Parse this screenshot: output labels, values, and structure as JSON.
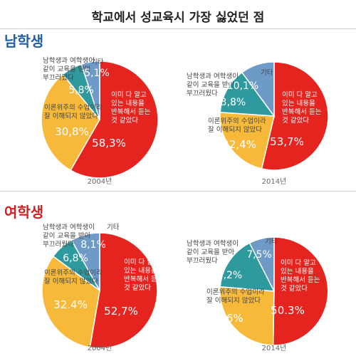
{
  "title": "학교에서 성교육시 가장 싫었던 점",
  "sections": [
    {
      "label": "남학생",
      "color": "#1f5fa8"
    },
    {
      "label": "여학생",
      "color": "#d11f1f"
    }
  ],
  "colors": {
    "red": "#e52420",
    "yellow": "#f6b93a",
    "teal": "#2e9a9d",
    "blue": "#6d9ac7"
  },
  "chart_data": [
    {
      "type": "pie",
      "group": "남학생",
      "year_label": "2004년",
      "slices": [
        {
          "label_lines": [
            "이미 다 알고",
            "있는 내용을",
            "반복해서 듣는",
            "것 같았다"
          ],
          "value": 58.3,
          "value_label": "58,3%",
          "color": "#e52420"
        },
        {
          "label_lines": [
            "이론위주의 수업이라",
            "잘 이해되지 않았다"
          ],
          "value": 30.8,
          "value_label": "30,8%",
          "color": "#f6b93a"
        },
        {
          "label_lines": [
            "남학생과 여학생이",
            "같이 교육을 받아",
            "부끄러웠다"
          ],
          "value": 5.8,
          "value_label": "5,8%",
          "color": "#2e9a9d"
        },
        {
          "label_lines": [
            "기타"
          ],
          "value": 5.1,
          "value_label": "5,1%",
          "color": "#6d9ac7"
        }
      ]
    },
    {
      "type": "pie",
      "group": "남학생",
      "year_label": "2014년",
      "slices": [
        {
          "label_lines": [
            "이미 다 알고",
            "있는 내용을",
            "반복해서 듣는",
            "것 같았다"
          ],
          "value": 53.7,
          "value_label": "53,7%",
          "color": "#e52420"
        },
        {
          "label_lines": [
            "이론위주의 수업이라",
            "잘 이해되지 않았다"
          ],
          "value": 22.4,
          "value_label": "22,4%",
          "color": "#f6b93a"
        },
        {
          "label_lines": [
            "남학생과 여학생이",
            "같이 교육을 받아",
            "부끄러웠다"
          ],
          "value": 13.8,
          "value_label": "13,8%",
          "color": "#2e9a9d"
        },
        {
          "label_lines": [
            "기타"
          ],
          "value": 10.1,
          "value_label": "10,1%",
          "color": "#6d9ac7"
        }
      ]
    },
    {
      "type": "pie",
      "group": "여학생",
      "year_label": "2004년",
      "slices": [
        {
          "label_lines": [
            "이미 다 알고",
            "있는 내용을",
            "반복해서 듣는",
            "것 같았다"
          ],
          "value": 52.7,
          "value_label": "52,7%",
          "color": "#e52420"
        },
        {
          "label_lines": [
            "이론위주의 수업이라",
            "잘 이해되지 않았다"
          ],
          "value": 32.4,
          "value_label": "32.4%",
          "color": "#f6b93a"
        },
        {
          "label_lines": [
            "남학생과 여학생이",
            "같이 교육을 받아",
            "부끄러웠다"
          ],
          "value": 6.8,
          "value_label": "6,8%",
          "color": "#2e9a9d"
        },
        {
          "label_lines": [
            "기타"
          ],
          "value": 8.1,
          "value_label": "8,1%",
          "color": "#6d9ac7"
        }
      ]
    },
    {
      "type": "pie",
      "group": "여학생",
      "year_label": "2014년",
      "slices": [
        {
          "label_lines": [
            "이미 다 알고",
            "있는 내용을",
            "반복해서 듣는",
            "것 같았다"
          ],
          "value": 50.3,
          "value_label": "50.3%",
          "color": "#e52420"
        },
        {
          "label_lines": [
            "이론위주의 수업이라",
            "잘 이해되지 않았다"
          ],
          "value": 26,
          "value_label": "26%",
          "color": "#f6b93a"
        },
        {
          "label_lines": [
            "남학생과 여학생이",
            "같이 교육을 받아",
            "부끄러웠다"
          ],
          "value": 16.2,
          "value_label": "16,2%",
          "color": "#2e9a9d"
        },
        {
          "label_lines": [
            "기타"
          ],
          "value": 7.5,
          "value_label": "7,5%",
          "color": "#6d9ac7"
        }
      ]
    }
  ]
}
